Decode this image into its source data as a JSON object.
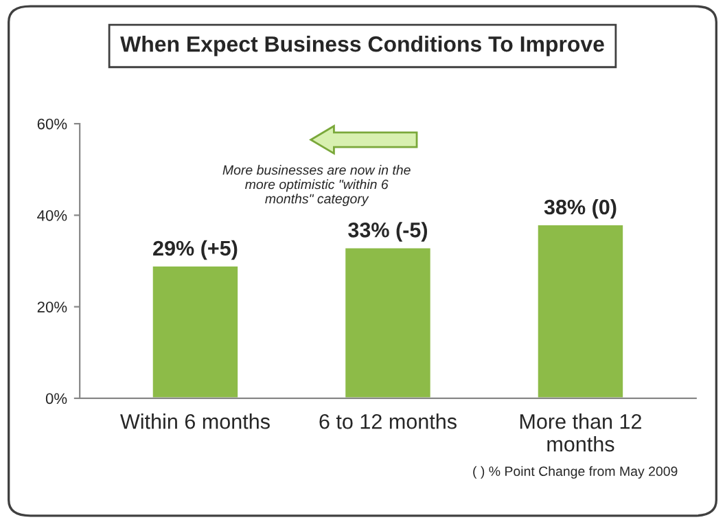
{
  "chart_data": {
    "type": "bar",
    "title": "When Expect Business Conditions To Improve",
    "categories": [
      "Within 6 months",
      "6 to 12 months",
      "More than 12 months"
    ],
    "values": [
      29,
      33,
      38
    ],
    "color": "#8dbb48",
    "value_labels": [
      "29% (+5)",
      "33% (-5)",
      "38% (0)"
    ],
    "ylim": [
      0,
      60
    ],
    "yticks": [
      {
        "value": 0,
        "label": "0%"
      },
      {
        "value": 20,
        "label": "20%"
      },
      {
        "value": 40,
        "label": "40%"
      },
      {
        "value": 60,
        "label": "60%"
      }
    ],
    "grid": false,
    "legend": false,
    "annotations": [
      "More businesses are now in the more optimistic \"within 6 months\" category",
      "( ) % Point Change from May 2009"
    ]
  }
}
